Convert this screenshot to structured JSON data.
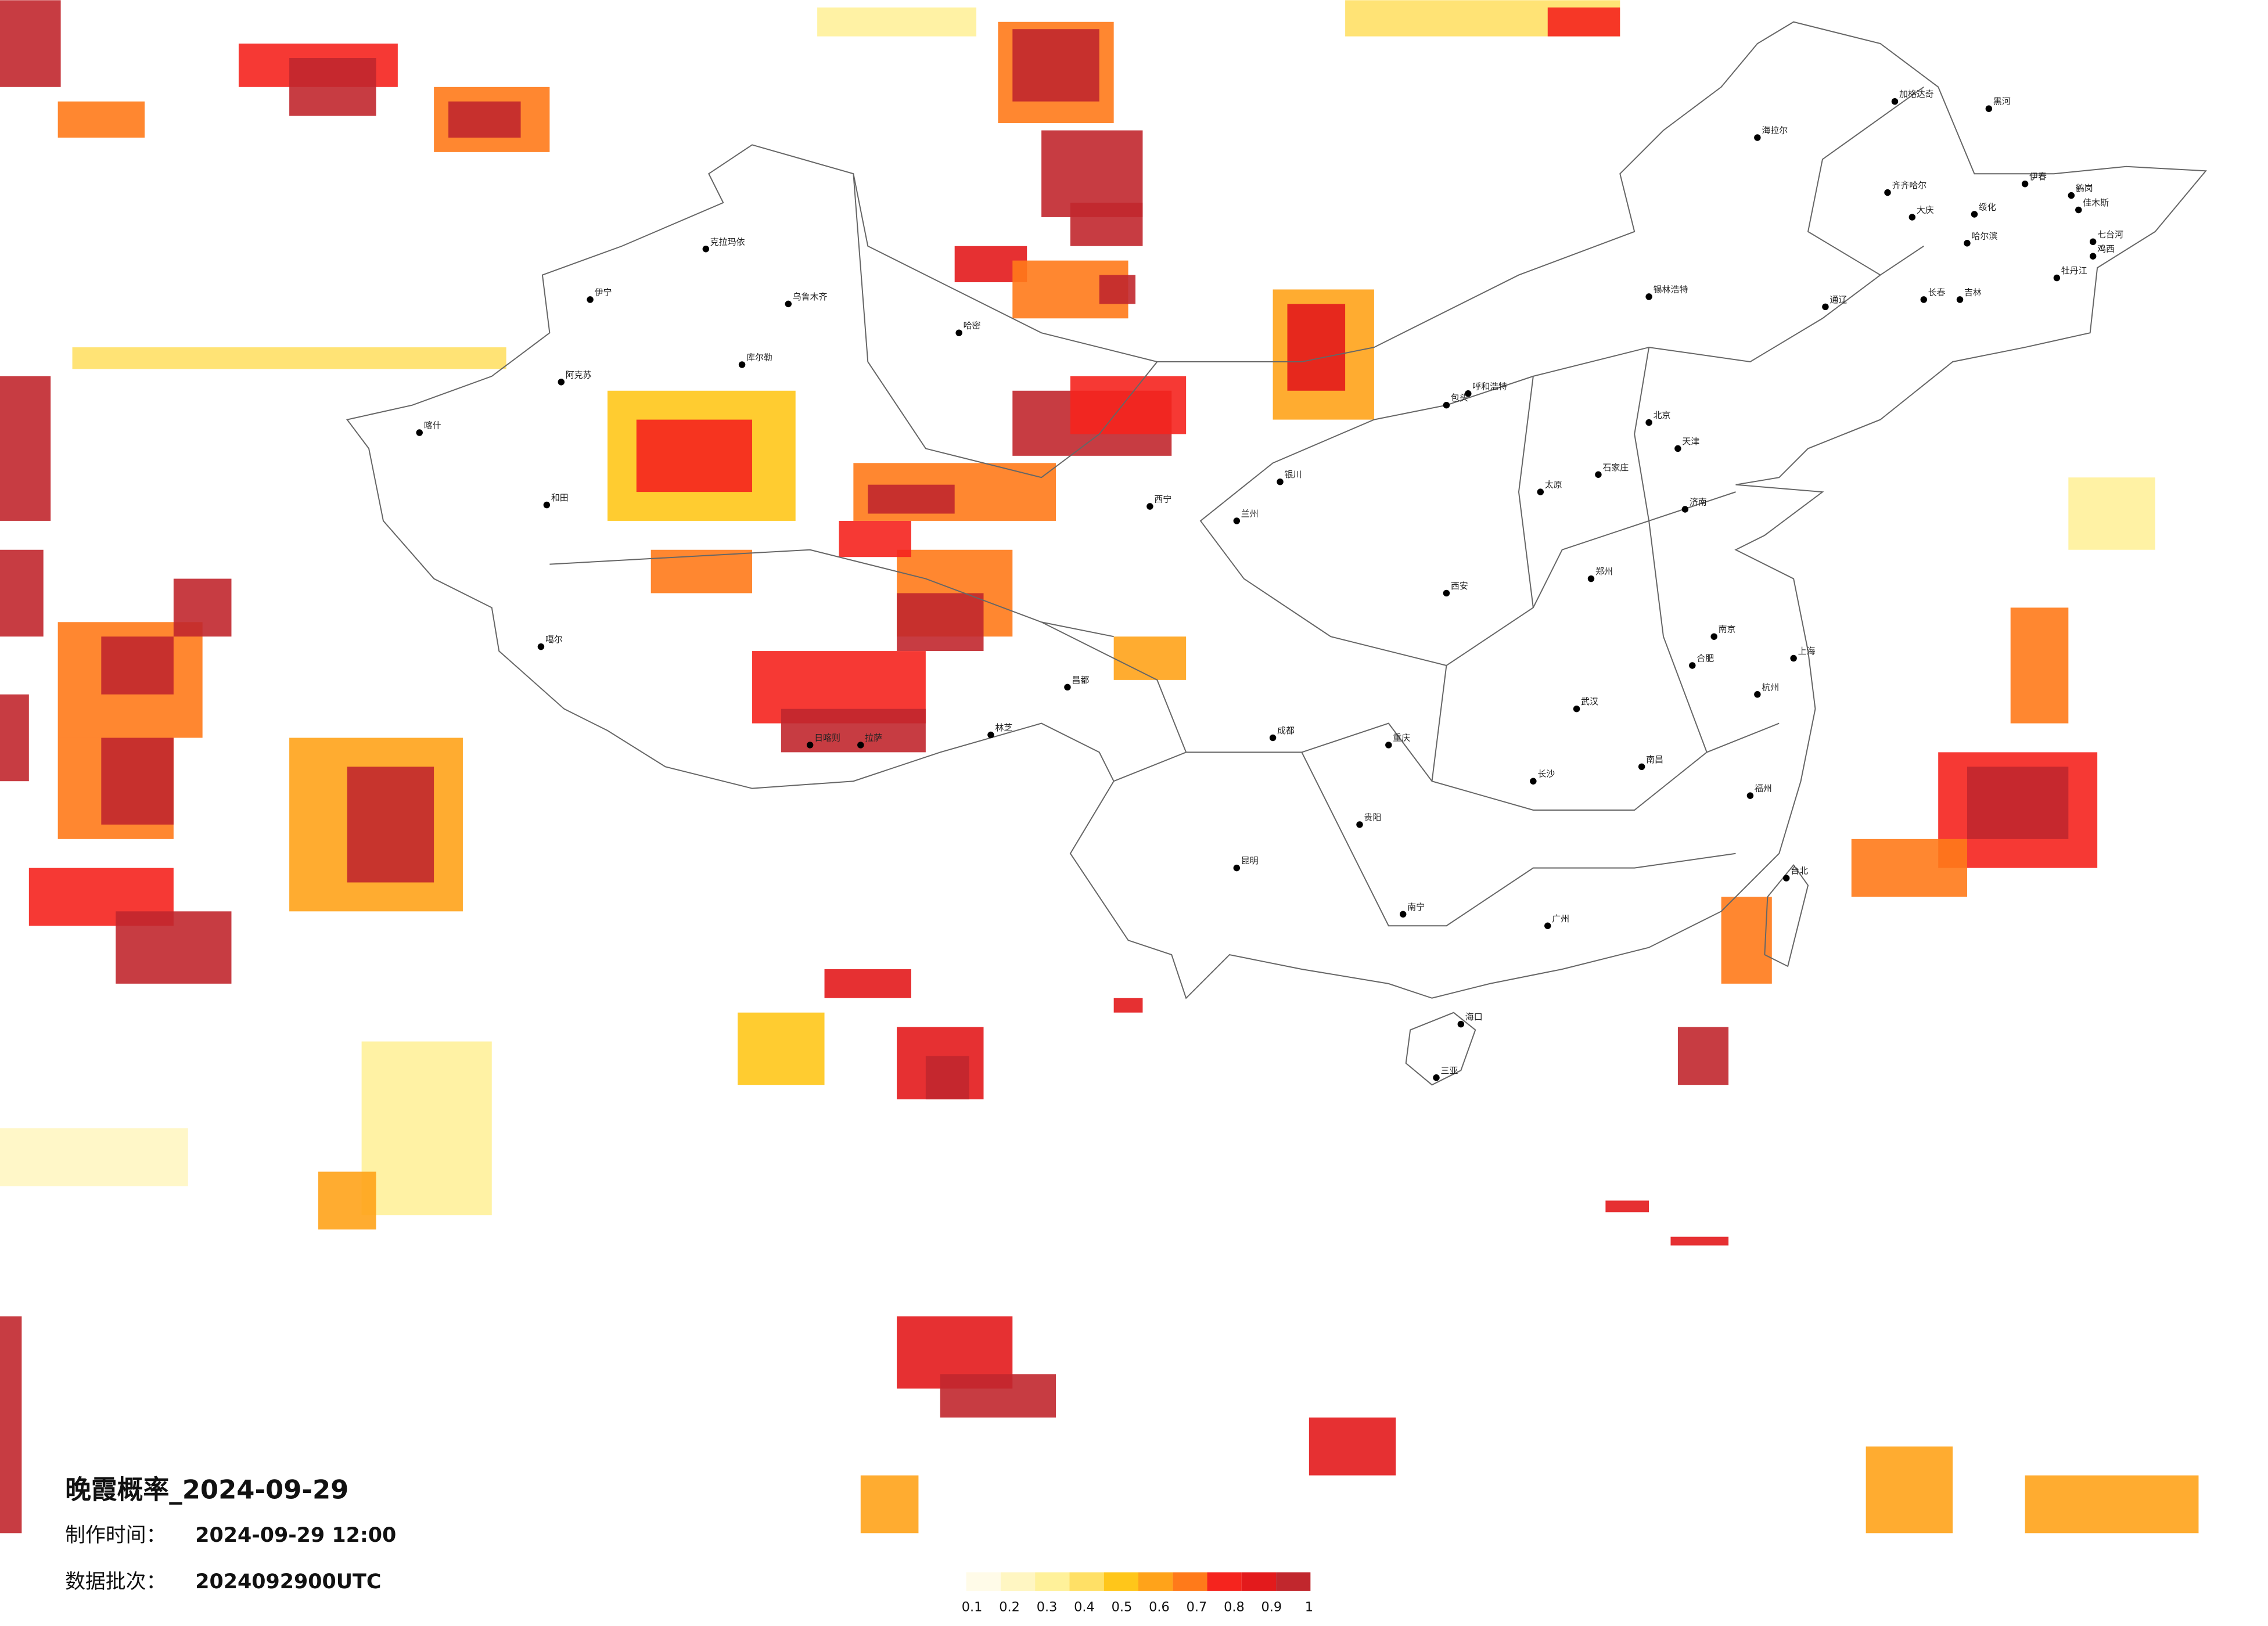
{
  "header": {
    "title": "晚霞概率_2024-09-29",
    "made_label": "制作时间：",
    "made_value": "2024-09-29 12:00",
    "batch_label": "数据批次：",
    "batch_value": "2024092900UTC"
  },
  "legend": {
    "colors": [
      "#fffbe8",
      "#fff6c2",
      "#fff19a",
      "#ffe066",
      "#ffc61a",
      "#ffa31a",
      "#ff7a1a",
      "#f5241e",
      "#e31a1c",
      "#c1272d"
    ],
    "ticks": [
      0.1,
      0.2,
      0.3,
      0.4,
      0.5,
      0.6,
      0.7,
      0.8,
      0.9,
      1
    ]
  },
  "cities": [
    "加格达奇",
    "黑河",
    "海拉尔",
    "齐齐哈尔",
    "伊春",
    "鹤岗",
    "佳木斯",
    "大庆",
    "绥化",
    "哈尔滨",
    "七台河",
    "鸡西",
    "牡丹江",
    "长春",
    "吉林",
    "通辽",
    "锡林浩特",
    "呼和浩特",
    "包头",
    "北京",
    "天津",
    "石家庄",
    "太原",
    "济南",
    "郑州",
    "西安",
    "兰州",
    "西宁",
    "银川",
    "乌鲁木齐",
    "克拉玛依",
    "伊宁",
    "哈密",
    "库尔勒",
    "阿克苏",
    "喀什",
    "和田",
    "拉萨",
    "日喀则",
    "林芝",
    "昌都",
    "噶尔",
    "成都",
    "重庆",
    "贵阳",
    "昆明",
    "南宁",
    "广州",
    "武汉",
    "长沙",
    "南昌",
    "合肥",
    "南京",
    "上海",
    "杭州",
    "福州",
    "海口",
    "三亚",
    "台北"
  ]
}
